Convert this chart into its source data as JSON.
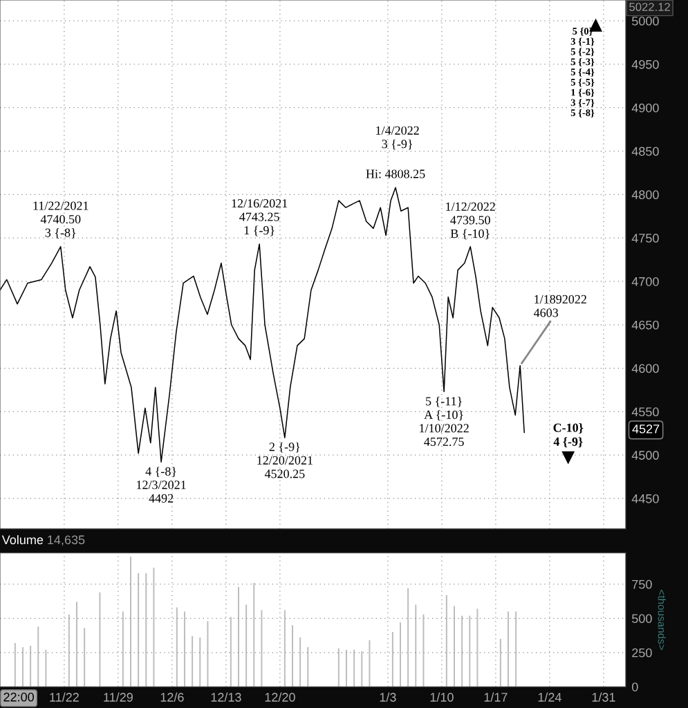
{
  "chart_data": [
    {
      "type": "line",
      "x": [
        "2021-11-13T16:00",
        "2021-11-14T13:00",
        "2021-11-15T22:00",
        "2021-11-17T06:00",
        "2021-11-19T01:00",
        "2021-11-20T09:00",
        "2021-11-21T13:00",
        "2021-11-22T04:00",
        "2021-11-23T02:00",
        "2021-11-23T23:00",
        "2021-11-25T08:00",
        "2021-11-26T01:00",
        "2021-11-26T16:00",
        "2021-11-27T07:00",
        "2021-11-28T00:00",
        "2021-11-28T18:00",
        "2021-11-29T09:00",
        "2021-11-30T17:00",
        "2021-12-01T15:00",
        "2021-12-02T12:00",
        "2021-12-03T05:00",
        "2021-12-03T20:00",
        "2021-12-04T14:00",
        "2021-12-05T16:00",
        "2021-12-06T13:00",
        "2021-12-07T11:00",
        "2021-12-08T19:00",
        "2021-12-09T16:00",
        "2021-12-10T14:00",
        "2021-12-11T12:00",
        "2021-12-12T09:00",
        "2021-12-13T02:00",
        "2021-12-13T17:00",
        "2021-12-14T15:00",
        "2021-12-15T12:00",
        "2021-12-16T04:00",
        "2021-12-16T17:00",
        "2021-12-17T08:00",
        "2021-12-18T01:00",
        "2021-12-19T03:00",
        "2021-12-20T00:00",
        "2021-12-20T15:00",
        "2021-12-21T08:00",
        "2021-12-22T06:00",
        "2021-12-23T04:00",
        "2021-12-24T01:00",
        "2021-12-24T23:00",
        "2021-12-25T20:00",
        "2021-12-26T18:00",
        "2021-12-27T15:00",
        "2021-12-28T13:00",
        "2021-12-29T10:00",
        "2021-12-30T08:00",
        "2021-12-31T05:00",
        "2022-01-01T03:00",
        "2022-01-02T01:00",
        "2022-01-02T18:00",
        "2022-01-03T09:00",
        "2022-01-04T00:00",
        "2022-01-04T17:00",
        "2022-01-05T15:00",
        "2022-01-06T08:00",
        "2022-01-06T23:00",
        "2022-01-07T21:00",
        "2022-01-08T18:00",
        "2022-01-09T16:00",
        "2022-01-10T07:00",
        "2022-01-10T20:00",
        "2022-01-11T11:00",
        "2022-01-12T02:00",
        "2022-01-12T23:00",
        "2022-01-13T17:00",
        "2022-01-14T10:00",
        "2022-01-15T01:00",
        "2022-01-15T23:00",
        "2022-01-16T14:00",
        "2022-01-17T11:00",
        "2022-01-18T04:00",
        "2022-01-18T19:00",
        "2022-01-19T13:00",
        "2022-01-20T04:00",
        "2022-01-20T17:00"
      ],
      "series": [
        {
          "color": "#000000",
          "values": [
            4690,
            4702,
            4674,
            4698,
            4702,
            4721,
            4740,
            4690,
            4658,
            4690,
            4717,
            4705,
            4650,
            4582,
            4634,
            4666,
            4618,
            4578,
            4502,
            4554,
            4514,
            4578,
            4492,
            4570,
            4642,
            4698,
            4706,
            4682,
            4662,
            4690,
            4721,
            4682,
            4650,
            4634,
            4626,
            4610,
            4713,
            4743,
            4650,
            4594,
            4554,
            4520,
            4578,
            4626,
            4634,
            4690,
            4713,
            4737,
            4761,
            4793,
            4785,
            4789,
            4793,
            4769,
            4761,
            4785,
            4753,
            4793,
            4808,
            4781,
            4785,
            4698,
            4706,
            4698,
            4682,
            4650,
            4573,
            4682,
            4658,
            4713,
            4721,
            4740,
            4705,
            4666,
            4626,
            4670,
            4658,
            4634,
            4578,
            4546,
            4603,
            4526
          ]
        }
      ],
      "xlim": [
        "2021-11-13T16:00",
        "2022-02-02T21:00"
      ],
      "xticks": [
        {
          "value": "2021-11-22",
          "label": null
        },
        {
          "value": "2021-11-29",
          "label": null
        },
        {
          "value": "2021-12-06",
          "label": null
        },
        {
          "value": "2021-12-13",
          "label": null
        },
        {
          "value": "2021-12-20",
          "label": null
        },
        {
          "value": "2022-01-03",
          "label": null
        },
        {
          "value": "2022-01-10",
          "label": null
        },
        {
          "value": "2022-01-17",
          "label": null
        },
        {
          "value": "2022-01-24",
          "label": null
        },
        {
          "value": "2022-01-31",
          "label": null
        }
      ],
      "ylim": [
        4415,
        5024
      ],
      "yticks": [
        4450,
        4500,
        4550,
        4600,
        4650,
        4700,
        4750,
        4800,
        4850,
        4900,
        4950,
        5000
      ],
      "tick_labels": "y",
      "grid": true,
      "annotations": [
        {
          "text": "11/22/2021\n4740.50\n3 {-8}",
          "x": "2021-11-21T13:00",
          "y": 4740.5
        },
        {
          "text": "4 {-8}\n12/3/2021\n4492",
          "x": "2021-12-04T14:00",
          "y": 4492
        },
        {
          "text": "12/16/2021\n4743.25\n1 {-9}",
          "x": "2021-12-17T08:00",
          "y": 4743.25
        },
        {
          "text": "2 {-9}\n12/20/2021\n4520.25",
          "x": "2021-12-20T15:00",
          "y": 4520.25
        },
        {
          "text": "Hi: 4808.25",
          "x": "2022-01-04T00:00",
          "y": 4808.25
        },
        "1/4/2022\n3 {-9}",
        {
          "text": "1/12/2022\n4739.50\nB {-10}",
          "x": "2022-01-13T17:00",
          "y": 4739.5
        },
        {
          "text": "5 {-11}\nA {-10}\n1/10/2022\n4572.75",
          "x": "2022-01-10T07:00",
          "y": 4572.75
        },
        {
          "text": "1/1892022\n4603",
          "x": "2022-01-20T04:00",
          "y": 4603
        },
        "C-10}\n4 {-9}",
        "5 {0}\n3 {-1}\n5 {-2}\n5 {-3}\n5 {-4}\n5 {-5}\n1 {-6}\n3 {-7}\n5 {-8}",
        "5022.12",
        "4527"
      ]
    },
    {
      "type": "bar",
      "x": [
        "2021-11-15T15:00",
        "2021-11-16T15:00",
        "2021-11-17T15:00",
        "2021-11-18T15:00",
        "2021-11-19T15:00",
        "2021-11-22T15:00",
        "2021-11-23T15:00",
        "2021-11-24T15:00",
        "2021-11-26T15:00",
        "2021-11-29T15:00",
        "2021-11-30T15:00",
        "2021-12-01T15:00",
        "2021-12-02T15:00",
        "2021-12-03T15:00",
        "2021-12-06T15:00",
        "2021-12-07T15:00",
        "2021-12-08T15:00",
        "2021-12-09T15:00",
        "2021-12-10T15:00",
        "2021-12-13T15:00",
        "2021-12-14T15:00",
        "2021-12-15T15:00",
        "2021-12-16T15:00",
        "2021-12-17T15:00",
        "2021-12-20T15:00",
        "2021-12-21T15:00",
        "2021-12-22T15:00",
        "2021-12-23T15:00",
        "2021-12-27T15:00",
        "2021-12-28T15:00",
        "2021-12-29T15:00",
        "2021-12-30T15:00",
        "2021-12-31T15:00",
        "2022-01-03T15:00",
        "2022-01-04T15:00",
        "2022-01-05T15:00",
        "2022-01-06T15:00",
        "2022-01-07T15:00",
        "2022-01-10T15:00",
        "2022-01-11T15:00",
        "2022-01-12T15:00",
        "2022-01-13T15:00",
        "2022-01-14T15:00",
        "2022-01-17T15:00",
        "2022-01-18T15:00",
        "2022-01-19T15:00"
      ],
      "series": [
        {
          "color": "#bdbdbd",
          "values": [
            320,
            290,
            300,
            440,
            270,
            530,
            620,
            430,
            690,
            550,
            950,
            830,
            830,
            870,
            580,
            550,
            370,
            360,
            480,
            510,
            730,
            600,
            760,
            560,
            560,
            450,
            360,
            290,
            280,
            270,
            270,
            260,
            340,
            400,
            470,
            720,
            600,
            530,
            670,
            590,
            520,
            520,
            570,
            350,
            550,
            550
          ]
        }
      ],
      "xlim": [
        "2021-11-13T16:00",
        "2022-02-02T21:00"
      ],
      "xticks": [
        {
          "value": "2021-11-22",
          "label": "11/22"
        },
        {
          "value": "2021-11-29",
          "label": "11/29"
        },
        {
          "value": "2021-12-06",
          "label": "12/6"
        },
        {
          "value": "2021-12-13",
          "label": "12/13"
        },
        {
          "value": "2021-12-20",
          "label": "12/20"
        },
        {
          "value": "2022-01-03",
          "label": "1/3"
        },
        {
          "value": "2022-01-10",
          "label": "1/10"
        },
        {
          "value": "2022-01-17",
          "label": "1/17"
        },
        {
          "value": "2022-01-24",
          "label": "1/24"
        },
        {
          "value": "2022-01-31",
          "label": "1/31"
        }
      ],
      "ylim": [
        0,
        978
      ],
      "yticks": [
        0,
        250,
        500,
        750
      ],
      "ylabel": "<thousands>",
      "grid": true,
      "annotations": [
        "Volume",
        "14,635",
        "22:00"
      ]
    }
  ]
}
